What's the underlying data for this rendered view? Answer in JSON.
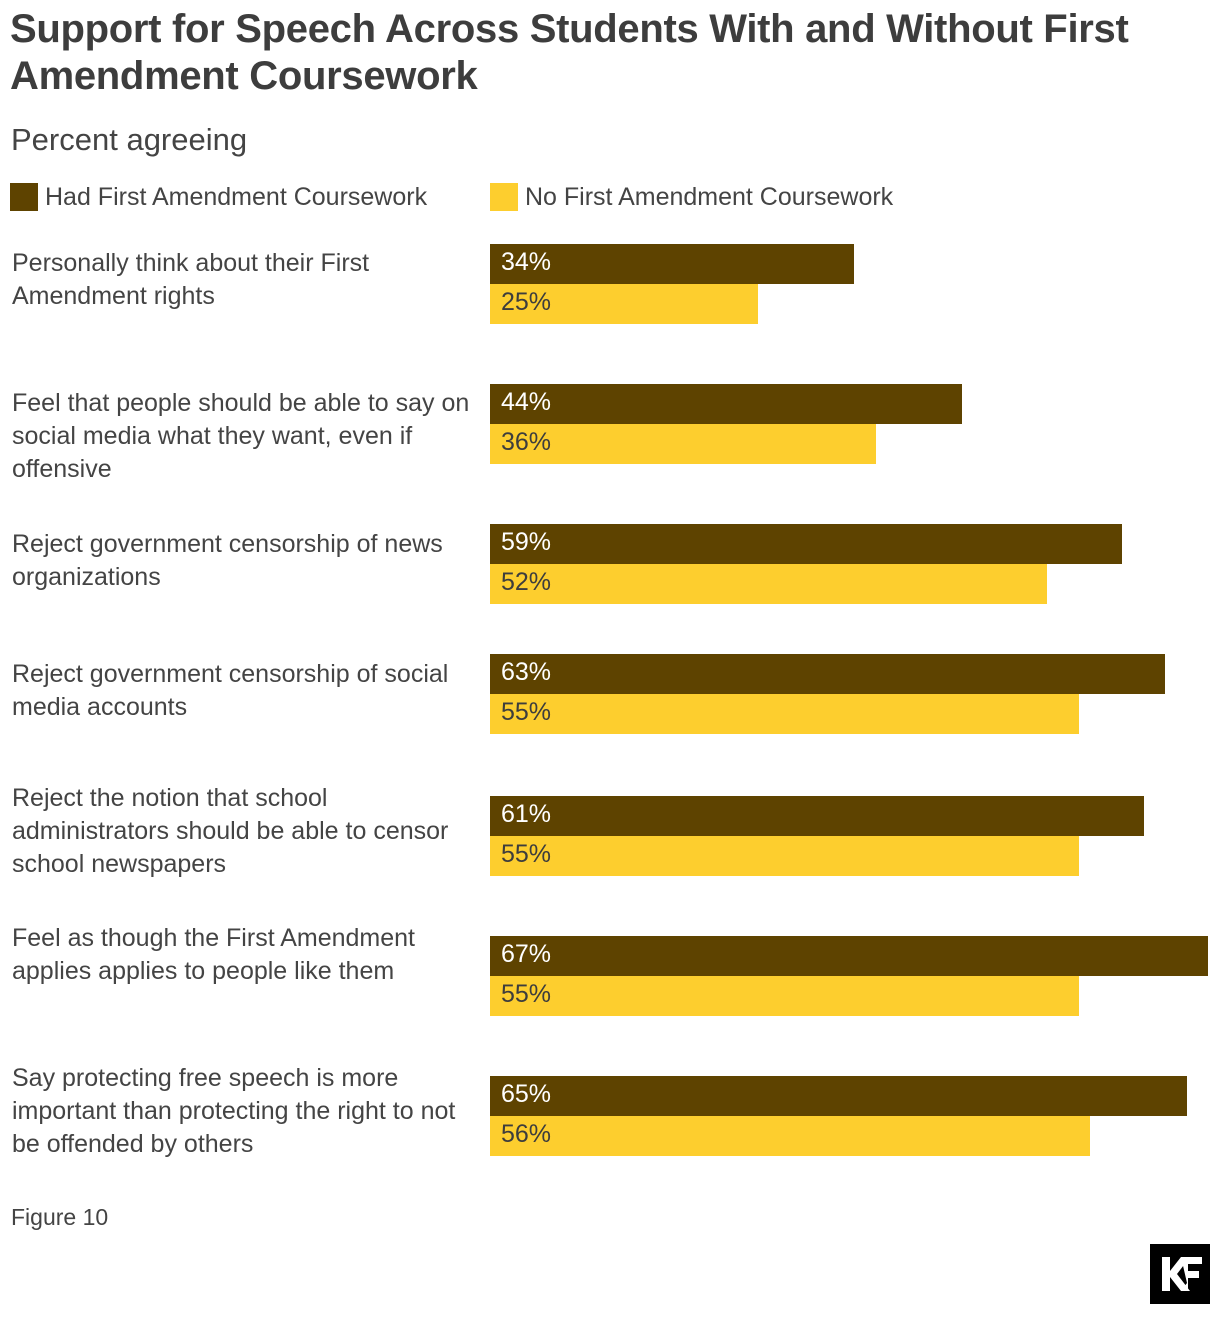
{
  "chart_data": {
    "type": "bar",
    "orientation": "horizontal",
    "title": "Support for Speech Across Students With and Without First Amendment Coursework",
    "subtitle": "Percent agreeing",
    "categories": [
      "Personally think about their First Amendment rights",
      "Feel that people should be able to say on social media what they want, even if offensive",
      "Reject government censorship of news organizations",
      "Reject government censorship of social media accounts",
      "Reject the notion that school administrators should be able to censor school newspapers",
      "Feel as though the First Amendment applies applies to people like them",
      "Say protecting free speech is more important than protecting the right to not be offended by others"
    ],
    "series": [
      {
        "name": "Had First Amendment Coursework",
        "color": "#5e4300",
        "label_color": "#ffffff",
        "values": [
          34,
          44,
          59,
          63,
          61,
          67,
          65
        ],
        "labels": [
          "34%",
          "44%",
          "59%",
          "63%",
          "61%",
          "67%",
          "65%"
        ]
      },
      {
        "name": "No First Amendment Coursework",
        "color": "#fdce2e",
        "label_color": "#3d3d3d",
        "values": [
          25,
          36,
          52,
          55,
          55,
          55,
          56
        ],
        "labels": [
          "25%",
          "36%",
          "52%",
          "55%",
          "55%",
          "55%",
          "56%"
        ]
      }
    ],
    "xlim": [
      0,
      67
    ],
    "grid": false,
    "legend": "top-left"
  },
  "figure_label": "Figure 10",
  "logo": {
    "text": "KF",
    "icon": "kf-logo-icon"
  }
}
